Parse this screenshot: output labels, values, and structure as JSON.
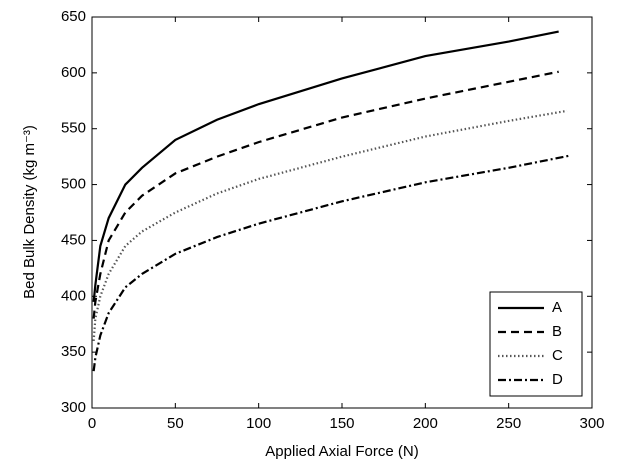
{
  "chart_data": {
    "type": "line",
    "x_label": "Applied Axial Force (N)",
    "y_label": "Bed Bulk Density (kg m⁻³)",
    "xlim": [
      0,
      300
    ],
    "xticks": [
      0,
      50,
      100,
      150,
      200,
      250,
      300
    ],
    "ylim": [
      300,
      650
    ],
    "yticks": [
      300,
      350,
      400,
      450,
      500,
      550,
      600,
      650
    ],
    "legend": "lower right",
    "series": [
      {
        "name": "A",
        "color": "#000000",
        "style": "solid",
        "x": [
          1,
          2,
          5,
          10,
          20,
          30,
          50,
          75,
          100,
          150,
          200,
          250,
          280
        ],
        "values": [
          395,
          410,
          445,
          470,
          500,
          515,
          540,
          558,
          572,
          595,
          615,
          628,
          637
        ]
      },
      {
        "name": "B",
        "color": "#000000",
        "style": "dashed",
        "x": [
          1,
          2,
          5,
          10,
          20,
          30,
          50,
          75,
          100,
          150,
          200,
          250,
          280
        ],
        "values": [
          380,
          395,
          420,
          450,
          475,
          490,
          510,
          525,
          538,
          560,
          577,
          592,
          601
        ]
      },
      {
        "name": "C",
        "color": "#555555",
        "style": "dotted",
        "x": [
          1,
          2,
          5,
          10,
          20,
          30,
          50,
          75,
          100,
          150,
          200,
          250,
          285
        ],
        "values": [
          360,
          380,
          400,
          420,
          445,
          458,
          475,
          492,
          505,
          525,
          543,
          557,
          566
        ]
      },
      {
        "name": "D",
        "color": "#000000",
        "style": "dashdot",
        "x": [
          1,
          2,
          5,
          10,
          20,
          30,
          50,
          75,
          100,
          150,
          200,
          250,
          287
        ],
        "values": [
          333,
          345,
          365,
          385,
          408,
          420,
          438,
          453,
          465,
          485,
          502,
          515,
          526
        ]
      }
    ]
  }
}
